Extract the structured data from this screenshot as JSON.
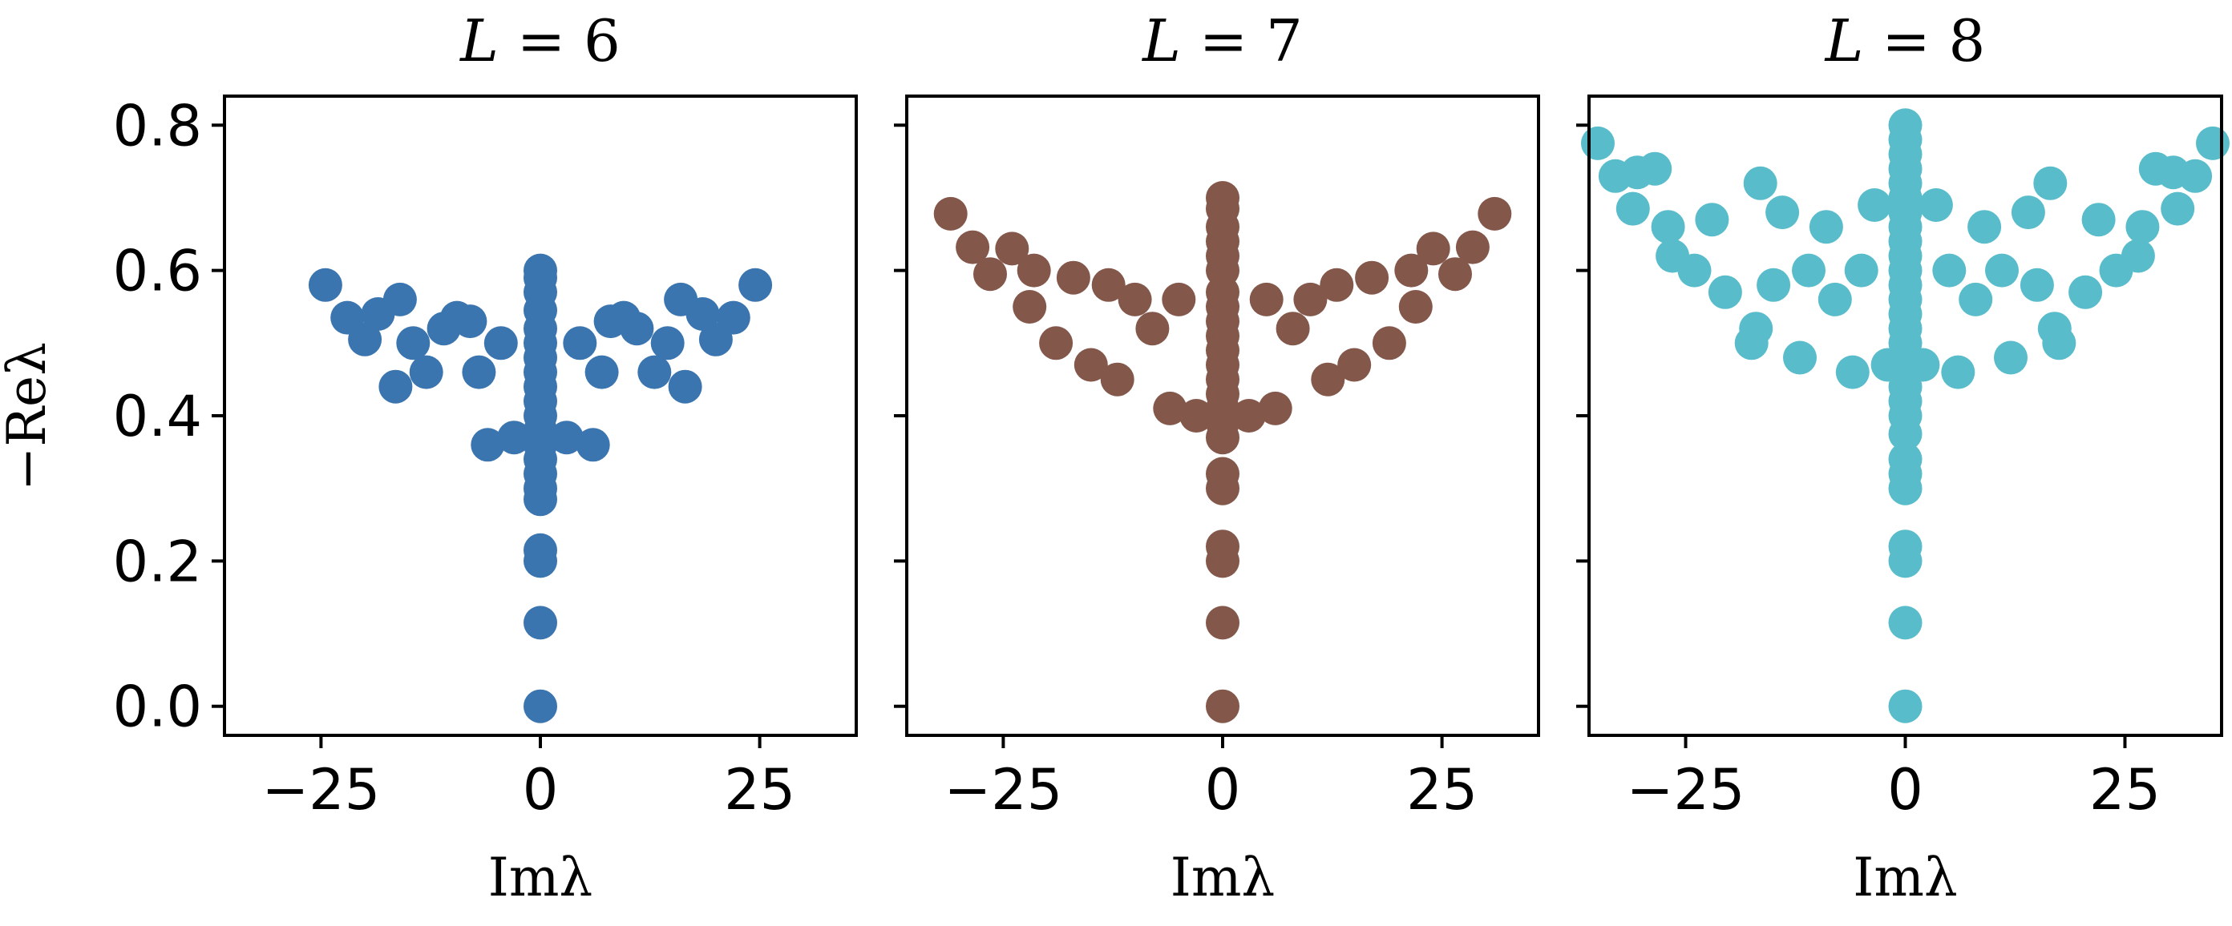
{
  "figure": {
    "ylabel": "−Reλ",
    "xlabel": "Imλ"
  },
  "chart_data": [
    {
      "type": "scatter",
      "title": "L = 6",
      "title_var": "L",
      "title_val": "6",
      "xlabel": "Imλ",
      "ylabel": "−Reλ",
      "xlim": [
        -36,
        36
      ],
      "ylim": [
        -0.04,
        0.84
      ],
      "xticks": [
        -25,
        0,
        25
      ],
      "xtick_labels": [
        "−25",
        "0",
        "25"
      ],
      "yticks": [
        0.0,
        0.2,
        0.4,
        0.6,
        0.8
      ],
      "ytick_labels": [
        "0.0",
        "0.2",
        "0.4",
        "0.6",
        "0.8"
      ],
      "color": "#3b75b0",
      "points": [
        [
          0,
          0.0
        ],
        [
          0,
          0.115
        ],
        [
          0,
          0.2
        ],
        [
          0,
          0.215
        ],
        [
          0,
          0.285
        ],
        [
          0,
          0.3
        ],
        [
          0,
          0.32
        ],
        [
          0,
          0.34
        ],
        [
          0,
          0.36
        ],
        [
          0,
          0.38
        ],
        [
          0,
          0.4
        ],
        [
          0,
          0.42
        ],
        [
          0,
          0.44
        ],
        [
          0,
          0.46
        ],
        [
          0,
          0.48
        ],
        [
          0,
          0.5
        ],
        [
          0,
          0.52
        ],
        [
          0,
          0.545
        ],
        [
          0,
          0.57
        ],
        [
          0,
          0.59
        ],
        [
          0,
          0.6
        ],
        [
          -24.5,
          0.58
        ],
        [
          24.5,
          0.58
        ],
        [
          -22,
          0.535
        ],
        [
          22,
          0.535
        ],
        [
          -20,
          0.505
        ],
        [
          20,
          0.505
        ],
        [
          -18.5,
          0.54
        ],
        [
          18.5,
          0.54
        ],
        [
          -16,
          0.56
        ],
        [
          16,
          0.56
        ],
        [
          -16.5,
          0.44
        ],
        [
          16.5,
          0.44
        ],
        [
          -14.5,
          0.5
        ],
        [
          14.5,
          0.5
        ],
        [
          -13,
          0.46
        ],
        [
          13,
          0.46
        ],
        [
          -11,
          0.52
        ],
        [
          11,
          0.52
        ],
        [
          -9.5,
          0.535
        ],
        [
          9.5,
          0.535
        ],
        [
          -8,
          0.53
        ],
        [
          8,
          0.53
        ],
        [
          -6,
          0.36
        ],
        [
          6,
          0.36
        ],
        [
          -3,
          0.37
        ],
        [
          3,
          0.37
        ],
        [
          -4.5,
          0.5
        ],
        [
          4.5,
          0.5
        ],
        [
          -7,
          0.46
        ],
        [
          7,
          0.46
        ]
      ]
    },
    {
      "type": "scatter",
      "title": "L = 7",
      "title_var": "L",
      "title_val": "7",
      "xlabel": "Imλ",
      "ylabel": "",
      "xlim": [
        -36,
        36
      ],
      "ylim": [
        -0.04,
        0.84
      ],
      "xticks": [
        -25,
        0,
        25
      ],
      "xtick_labels": [
        "−25",
        "0",
        "25"
      ],
      "yticks": [
        0.0,
        0.2,
        0.4,
        0.6,
        0.8
      ],
      "color": "#84574b",
      "points": [
        [
          0,
          0.0
        ],
        [
          0,
          0.115
        ],
        [
          0,
          0.2
        ],
        [
          0,
          0.22
        ],
        [
          0,
          0.3
        ],
        [
          0,
          0.32
        ],
        [
          0,
          0.37
        ],
        [
          0,
          0.39
        ],
        [
          0,
          0.41
        ],
        [
          0,
          0.43
        ],
        [
          0,
          0.45
        ],
        [
          0,
          0.47
        ],
        [
          0,
          0.49
        ],
        [
          0,
          0.51
        ],
        [
          0,
          0.53
        ],
        [
          0,
          0.55
        ],
        [
          0,
          0.57
        ],
        [
          0,
          0.6
        ],
        [
          0,
          0.62
        ],
        [
          0,
          0.64
        ],
        [
          0,
          0.66
        ],
        [
          0,
          0.685
        ],
        [
          0,
          0.7
        ],
        [
          -31,
          0.678
        ],
        [
          31,
          0.678
        ],
        [
          -28.5,
          0.632
        ],
        [
          28.5,
          0.632
        ],
        [
          -26.5,
          0.595
        ],
        [
          26.5,
          0.595
        ],
        [
          -24,
          0.63
        ],
        [
          24,
          0.63
        ],
        [
          -21.5,
          0.6
        ],
        [
          21.5,
          0.6
        ],
        [
          -22,
          0.55
        ],
        [
          22,
          0.55
        ],
        [
          -19,
          0.5
        ],
        [
          19,
          0.5
        ],
        [
          -17,
          0.59
        ],
        [
          17,
          0.59
        ],
        [
          -15,
          0.47
        ],
        [
          15,
          0.47
        ],
        [
          -13,
          0.58
        ],
        [
          13,
          0.58
        ],
        [
          -12,
          0.45
        ],
        [
          12,
          0.45
        ],
        [
          -10,
          0.56
        ],
        [
          10,
          0.56
        ],
        [
          -6,
          0.41
        ],
        [
          6,
          0.41
        ],
        [
          -3,
          0.4
        ],
        [
          3,
          0.4
        ],
        [
          -8,
          0.52
        ],
        [
          8,
          0.52
        ],
        [
          -5,
          0.56
        ],
        [
          5,
          0.56
        ]
      ]
    },
    {
      "type": "scatter",
      "title": "L = 8",
      "title_var": "L",
      "title_val": "8",
      "xlabel": "Imλ",
      "ylabel": "",
      "xlim": [
        -36,
        36
      ],
      "ylim": [
        -0.04,
        0.84
      ],
      "xticks": [
        -25,
        0,
        25
      ],
      "xtick_labels": [
        "−25",
        "0",
        "25"
      ],
      "yticks": [
        0.0,
        0.2,
        0.4,
        0.6,
        0.8
      ],
      "color": "#58bccb",
      "points": [
        [
          0,
          0.0
        ],
        [
          0,
          0.115
        ],
        [
          0,
          0.2
        ],
        [
          0,
          0.22
        ],
        [
          0,
          0.3
        ],
        [
          0,
          0.32
        ],
        [
          0,
          0.34
        ],
        [
          0,
          0.375
        ],
        [
          0,
          0.4
        ],
        [
          0,
          0.42
        ],
        [
          0,
          0.44
        ],
        [
          0,
          0.46
        ],
        [
          0,
          0.48
        ],
        [
          0,
          0.5
        ],
        [
          0,
          0.52
        ],
        [
          0,
          0.54
        ],
        [
          0,
          0.56
        ],
        [
          0,
          0.58
        ],
        [
          0,
          0.6
        ],
        [
          0,
          0.62
        ],
        [
          0,
          0.64
        ],
        [
          0,
          0.66
        ],
        [
          0,
          0.68
        ],
        [
          0,
          0.7
        ],
        [
          0,
          0.72
        ],
        [
          0,
          0.74
        ],
        [
          0,
          0.76
        ],
        [
          0,
          0.78
        ],
        [
          0,
          0.8
        ],
        [
          -35,
          0.775
        ],
        [
          35,
          0.775
        ],
        [
          -33,
          0.73
        ],
        [
          33,
          0.73
        ],
        [
          -30.5,
          0.735
        ],
        [
          30.5,
          0.735
        ],
        [
          -28.5,
          0.74
        ],
        [
          28.5,
          0.74
        ],
        [
          -31,
          0.685
        ],
        [
          31,
          0.685
        ],
        [
          -27,
          0.66
        ],
        [
          27,
          0.66
        ],
        [
          -26.5,
          0.62
        ],
        [
          26.5,
          0.62
        ],
        [
          -24,
          0.6
        ],
        [
          24,
          0.6
        ],
        [
          -20.5,
          0.57
        ],
        [
          20.5,
          0.57
        ],
        [
          -17,
          0.52
        ],
        [
          17,
          0.52
        ],
        [
          -16.5,
          0.72
        ],
        [
          16.5,
          0.72
        ],
        [
          -17.5,
          0.5
        ],
        [
          17.5,
          0.5
        ],
        [
          -14,
          0.68
        ],
        [
          14,
          0.68
        ],
        [
          -12,
          0.48
        ],
        [
          12,
          0.48
        ],
        [
          -9,
          0.66
        ],
        [
          9,
          0.66
        ],
        [
          -6,
          0.46
        ],
        [
          6,
          0.46
        ],
        [
          -3.5,
          0.69
        ],
        [
          3.5,
          0.69
        ],
        [
          -2,
          0.47
        ],
        [
          2,
          0.47
        ],
        [
          -8,
          0.56
        ],
        [
          8,
          0.56
        ],
        [
          -5,
          0.6
        ],
        [
          5,
          0.6
        ],
        [
          -22,
          0.67
        ],
        [
          22,
          0.67
        ],
        [
          -11,
          0.6
        ],
        [
          11,
          0.6
        ],
        [
          -15,
          0.58
        ],
        [
          15,
          0.58
        ]
      ]
    }
  ]
}
